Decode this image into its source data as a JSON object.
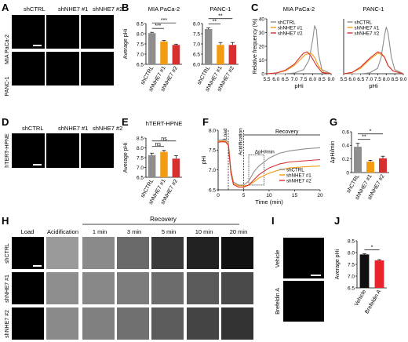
{
  "panels": {
    "A": {
      "letter": "A",
      "cols": [
        "shCTRL",
        "shNHE7 #1",
        "shNHE7 #2"
      ],
      "rows": [
        "MIA PaCa-2",
        "PANC-1"
      ]
    },
    "D": {
      "letter": "D",
      "cols": [
        "shCTRL",
        "shNHE7 #1",
        "shNHE7 #2"
      ],
      "rows": [
        "hTERT-HPNE"
      ]
    },
    "H": {
      "letter": "H",
      "stages": [
        "Load",
        "Acidification",
        "1 min",
        "3 min",
        "5 min",
        "10 min",
        "20 min"
      ],
      "recovery": "Recovery",
      "rows": [
        "shCTRL",
        "shNHE7 #1",
        "shNHE7 #2"
      ]
    },
    "I": {
      "letter": "I",
      "rows": [
        "Vehicle",
        "Brefeldin A"
      ]
    }
  },
  "chart_data": [
    {
      "id": "B1",
      "letter": "B",
      "type": "bar",
      "title": "MIA PaCa-2",
      "ylabel": "Average pHi",
      "categories": [
        "shCTRL",
        "shNHE7 #1",
        "shNHE7 #2"
      ],
      "values": [
        8.03,
        7.62,
        7.45
      ],
      "errors": [
        0.04,
        0.05,
        0.04
      ],
      "colors": [
        "#8e8e8e",
        "#f39c12",
        "#d62f2f"
      ],
      "ylim": [
        6.5,
        8.5
      ],
      "yticks": [
        "6.5",
        "7.0",
        "7.5",
        "8.0",
        "8.5"
      ],
      "sig": [
        {
          "from": 0,
          "to": 1,
          "label": "***"
        },
        {
          "from": 0,
          "to": 2,
          "label": "***"
        }
      ]
    },
    {
      "id": "B2",
      "letter": "",
      "type": "bar",
      "title": "PANC-1",
      "ylabel": "Average pHi",
      "categories": [
        "shCTRL",
        "shNHE7 #1",
        "shNHE7 #2"
      ],
      "values": [
        7.73,
        6.95,
        6.95
      ],
      "errors": [
        0.05,
        0.12,
        0.12
      ],
      "colors": [
        "#8e8e8e",
        "#f39c12",
        "#d62f2f"
      ],
      "ylim": [
        6.0,
        8.0
      ],
      "yticks": [
        "6.0",
        "6.5",
        "7.0",
        "7.5",
        "8.0"
      ],
      "sig": [
        {
          "from": 0,
          "to": 1,
          "label": "**"
        },
        {
          "from": 0,
          "to": 2,
          "label": "**"
        }
      ]
    },
    {
      "id": "C1",
      "letter": "C",
      "type": "line",
      "title": "MIA PaCa-2",
      "ylabel": "Relative frequency (%)",
      "xlabel": "pHi",
      "xlim": [
        5.5,
        9.0
      ],
      "ylim": [
        0,
        40
      ],
      "xticks": [
        "5.5",
        "6.0",
        "6.5",
        "7.0",
        "7.5",
        "8.0",
        "8.5",
        "9.0"
      ],
      "yticks": [
        "0",
        "10",
        "20",
        "30",
        "40"
      ],
      "series": [
        {
          "name": "shCTRL",
          "color": "#8e8e8e",
          "x": [
            5.5,
            6.5,
            7.0,
            7.5,
            7.8,
            8.0,
            8.1,
            8.2,
            8.3,
            8.5,
            9.0
          ],
          "y": [
            0,
            0,
            0.5,
            3,
            10,
            25,
            35,
            32,
            15,
            3,
            0
          ]
        },
        {
          "name": "shNHE7 #1",
          "color": "#f39c12",
          "x": [
            5.5,
            6.0,
            6.5,
            7.0,
            7.3,
            7.6,
            7.9,
            8.1,
            8.3,
            8.6,
            9.0
          ],
          "y": [
            0,
            0.5,
            2,
            6,
            10,
            14,
            15,
            12,
            6,
            1,
            0
          ]
        },
        {
          "name": "shNHE7 #2",
          "color": "#d62f2f",
          "x": [
            5.5,
            6.0,
            6.5,
            7.0,
            7.3,
            7.5,
            7.7,
            7.9,
            8.2,
            8.5,
            9.0
          ],
          "y": [
            0,
            0.5,
            2.5,
            7,
            12,
            15,
            16,
            13,
            6,
            1,
            0
          ]
        }
      ]
    },
    {
      "id": "C2",
      "letter": "",
      "type": "line",
      "title": "PANC-1",
      "ylabel": "",
      "xlabel": "pHi",
      "xlim": [
        5.5,
        9.0
      ],
      "ylim": [
        0,
        40
      ],
      "xticks": [
        "5.5",
        "6.0",
        "6.5",
        "7.0",
        "7.5",
        "8.0",
        "8.5",
        "9.0"
      ],
      "yticks": [],
      "series": [
        {
          "name": "shCTRL",
          "color": "#8e8e8e",
          "x": [
            5.5,
            6.5,
            7.0,
            7.5,
            7.7,
            7.9,
            8.0,
            8.1,
            8.3,
            8.5,
            9.0
          ],
          "y": [
            0,
            0,
            0.5,
            4,
            12,
            28,
            34,
            30,
            12,
            3,
            0
          ]
        },
        {
          "name": "shNHE7 #1",
          "color": "#f39c12",
          "x": [
            5.5,
            6.0,
            6.5,
            7.0,
            7.3,
            7.5,
            7.7,
            7.9,
            8.1,
            8.4,
            9.0
          ],
          "y": [
            0,
            1,
            4,
            10,
            13,
            15,
            14,
            12,
            6,
            2,
            0
          ]
        },
        {
          "name": "shNHE7 #2",
          "color": "#d62f2f",
          "x": [
            5.5,
            6.0,
            6.5,
            7.0,
            7.3,
            7.5,
            7.7,
            7.9,
            8.1,
            8.4,
            9.0
          ],
          "y": [
            0,
            1,
            5,
            11,
            14,
            16,
            15,
            12,
            6,
            2,
            0
          ]
        }
      ]
    },
    {
      "id": "E",
      "letter": "E",
      "type": "bar",
      "title": "hTERT-HPNE",
      "ylabel": "Average pHi",
      "categories": [
        "shCTRL",
        "shNHE7 #1",
        "shNHE7 #2"
      ],
      "values": [
        7.63,
        7.8,
        7.45
      ],
      "errors": [
        0.1,
        0.07,
        0.15
      ],
      "colors": [
        "#8e8e8e",
        "#f39c12",
        "#d62f2f"
      ],
      "ylim": [
        6.5,
        8.5
      ],
      "yticks": [
        "6.5",
        "7.0",
        "7.5",
        "8.0",
        "8.5"
      ],
      "sig": [
        {
          "from": 0,
          "to": 1,
          "label": "ns"
        },
        {
          "from": 0,
          "to": 2,
          "label": "ns"
        }
      ]
    },
    {
      "id": "F",
      "letter": "F",
      "type": "line",
      "title": "",
      "ylabel": "pHi",
      "xlabel": "Time (min)",
      "xlim": [
        0,
        20
      ],
      "ylim": [
        6.5,
        8.0
      ],
      "xticks": [
        "0",
        "5",
        "10",
        "15",
        "20"
      ],
      "yticks": [
        "6.5",
        "7.0",
        "7.5",
        "8.0"
      ],
      "annotations": [
        "Load",
        "Acidification",
        "Recovery",
        "ΔpH/min"
      ],
      "series": [
        {
          "name": "shCTRL",
          "color": "#8e8e8e",
          "x": [
            0,
            1,
            1.5,
            2,
            2.5,
            3,
            4,
            5,
            6,
            7,
            8,
            10,
            12,
            14,
            17,
            20
          ],
          "y": [
            7.75,
            7.76,
            7.75,
            7.7,
            7.0,
            6.7,
            6.62,
            6.62,
            6.72,
            6.95,
            7.1,
            7.3,
            7.42,
            7.48,
            7.53,
            7.56
          ]
        },
        {
          "name": "shNHE7 #1",
          "color": "#f39c12",
          "x": [
            0,
            1,
            1.5,
            2,
            2.5,
            3,
            4,
            5,
            6,
            7,
            8,
            10,
            12,
            14,
            17,
            20
          ],
          "y": [
            7.72,
            7.73,
            7.72,
            7.65,
            6.95,
            6.66,
            6.6,
            6.6,
            6.62,
            6.7,
            6.8,
            6.92,
            7.0,
            7.05,
            7.08,
            7.1
          ]
        },
        {
          "name": "shNHE7 #2",
          "color": "#d62f2f",
          "x": [
            0,
            1,
            1.5,
            2,
            2.5,
            3,
            4,
            5,
            6,
            7,
            8,
            10,
            12,
            14,
            17,
            20
          ],
          "y": [
            7.7,
            7.71,
            7.7,
            7.62,
            6.92,
            6.63,
            6.57,
            6.57,
            6.62,
            6.75,
            6.88,
            7.05,
            7.15,
            7.2,
            7.23,
            7.26
          ]
        }
      ]
    },
    {
      "id": "G",
      "letter": "G",
      "type": "bar",
      "title": "",
      "ylabel": "ΔpHi/min",
      "categories": [
        "shCTRL",
        "shNHE7 #1",
        "shNHE7 #2"
      ],
      "values": [
        0.38,
        0.16,
        0.21
      ],
      "errors": [
        0.05,
        0.02,
        0.03
      ],
      "colors": [
        "#8e8e8e",
        "#f39c12",
        "#d62f2f"
      ],
      "ylim": [
        0,
        0.6
      ],
      "yticks": [
        "0",
        "0.2",
        "0.4",
        "0.6"
      ],
      "sig": [
        {
          "from": 0,
          "to": 1,
          "label": "**"
        },
        {
          "from": 0,
          "to": 2,
          "label": "*"
        }
      ]
    },
    {
      "id": "J",
      "letter": "J",
      "type": "bar",
      "title": "",
      "ylabel": "Average pHi",
      "categories": [
        "Vehicle",
        "Brefeldin A"
      ],
      "values": [
        7.92,
        7.67
      ],
      "errors": [
        0.03,
        0.03
      ],
      "colors": [
        "#111111",
        "#e8242c"
      ],
      "ylim": [
        6.5,
        8.5
      ],
      "yticks": [
        "6.5",
        "7.0",
        "7.5",
        "8.0",
        "8.5"
      ],
      "sig": [
        {
          "from": 0,
          "to": 1,
          "label": "*"
        }
      ]
    }
  ]
}
